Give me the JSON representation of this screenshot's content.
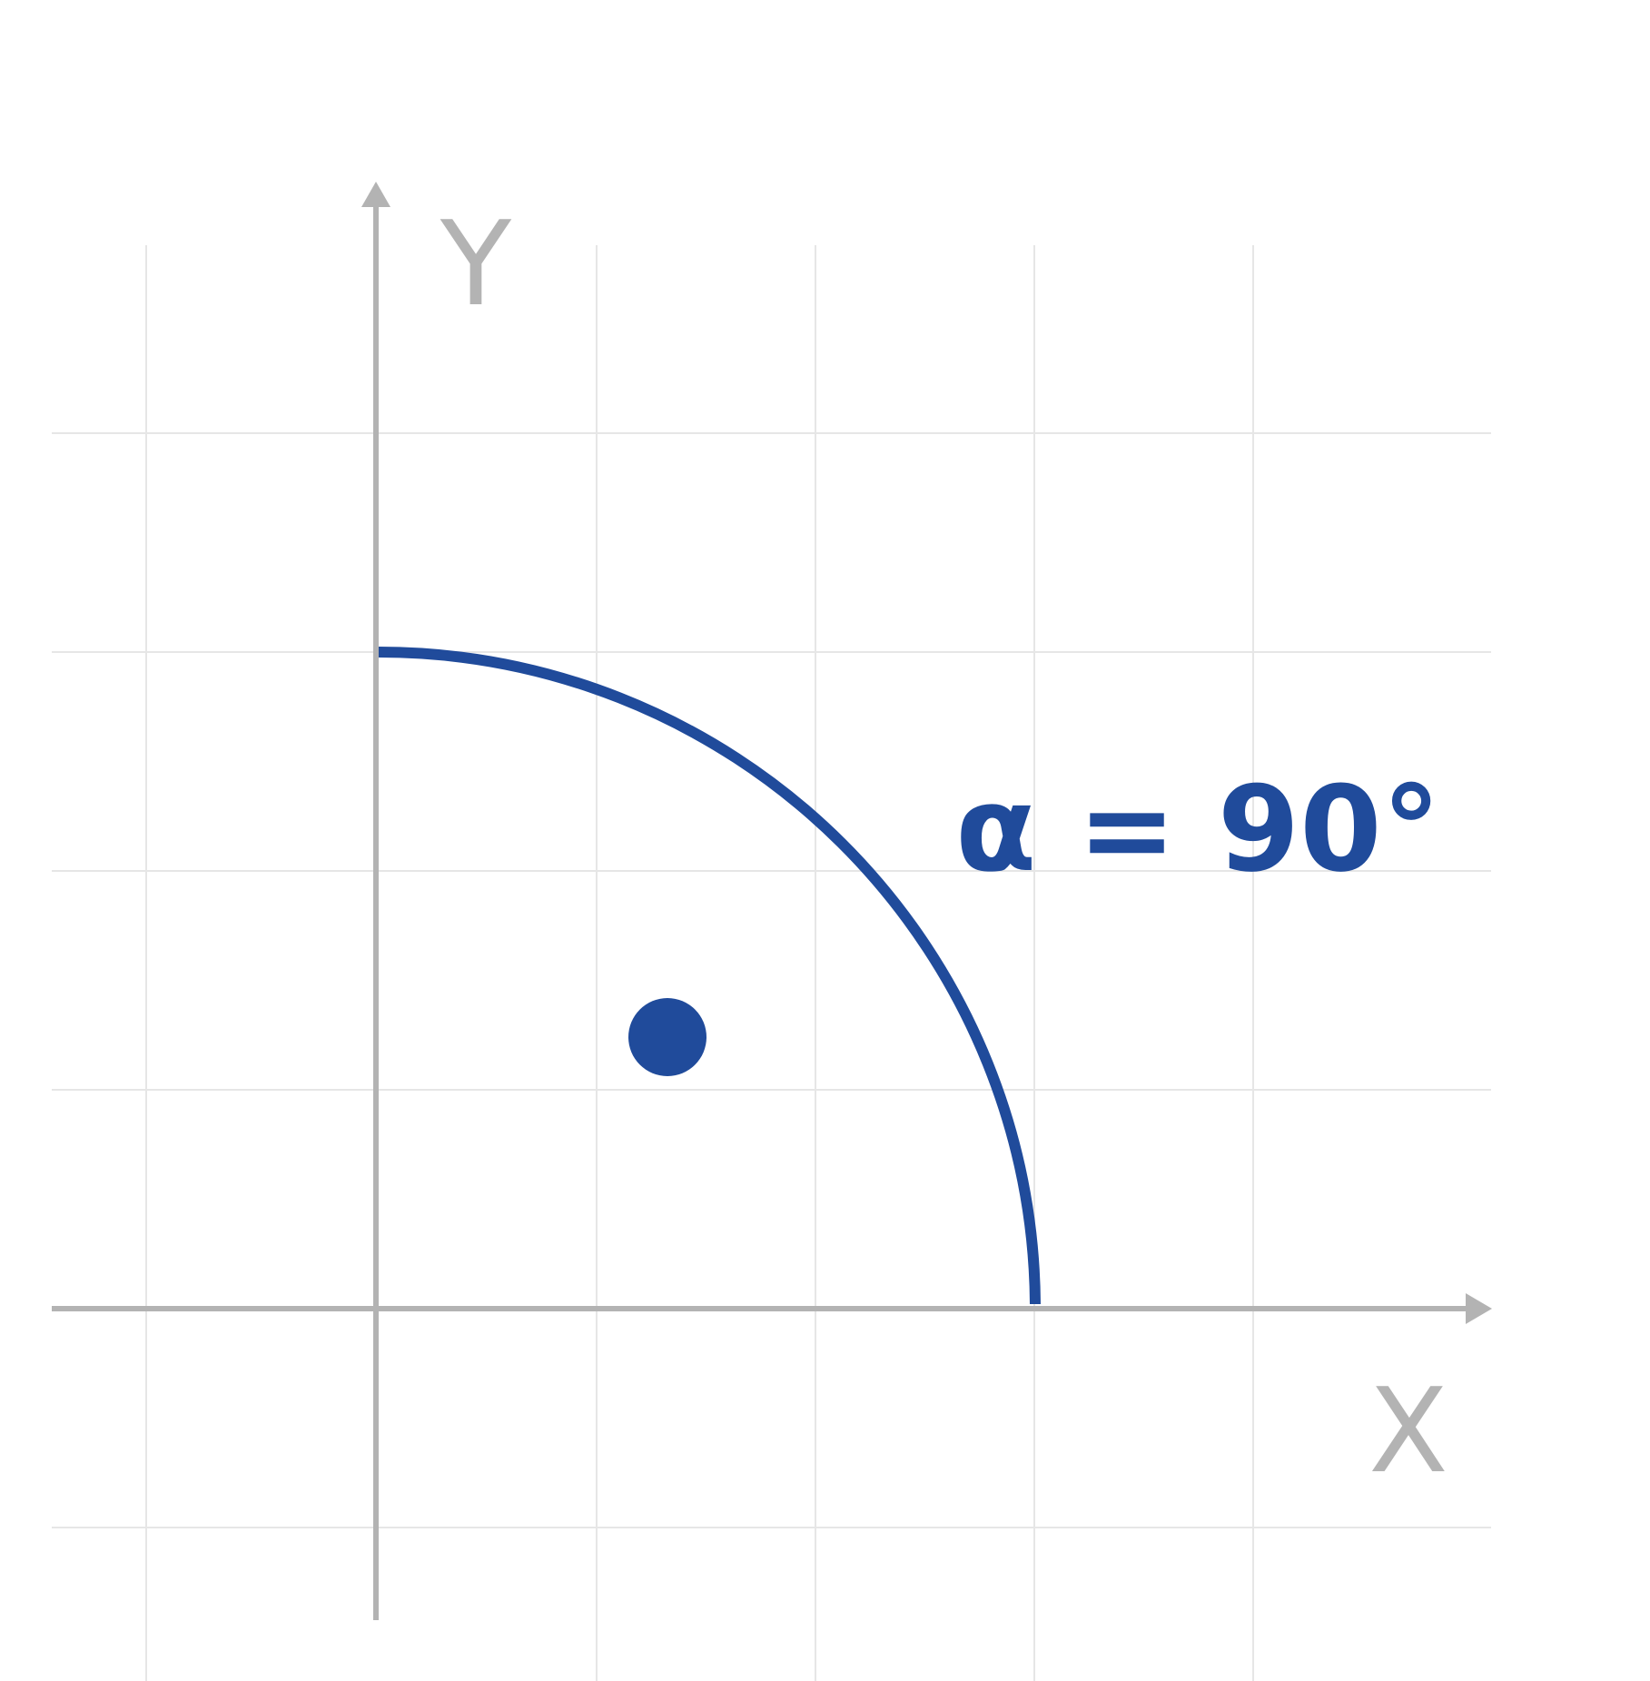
{
  "axes": {
    "x_label": "X",
    "y_label": "Y"
  },
  "angle": {
    "label": "α = 90°",
    "degrees": 90,
    "marker": "right-angle-dot"
  },
  "colors": {
    "accent": "#204b9b",
    "axis": "#b3b3b3",
    "grid": "#e6e6e6",
    "background": "#ffffff"
  }
}
